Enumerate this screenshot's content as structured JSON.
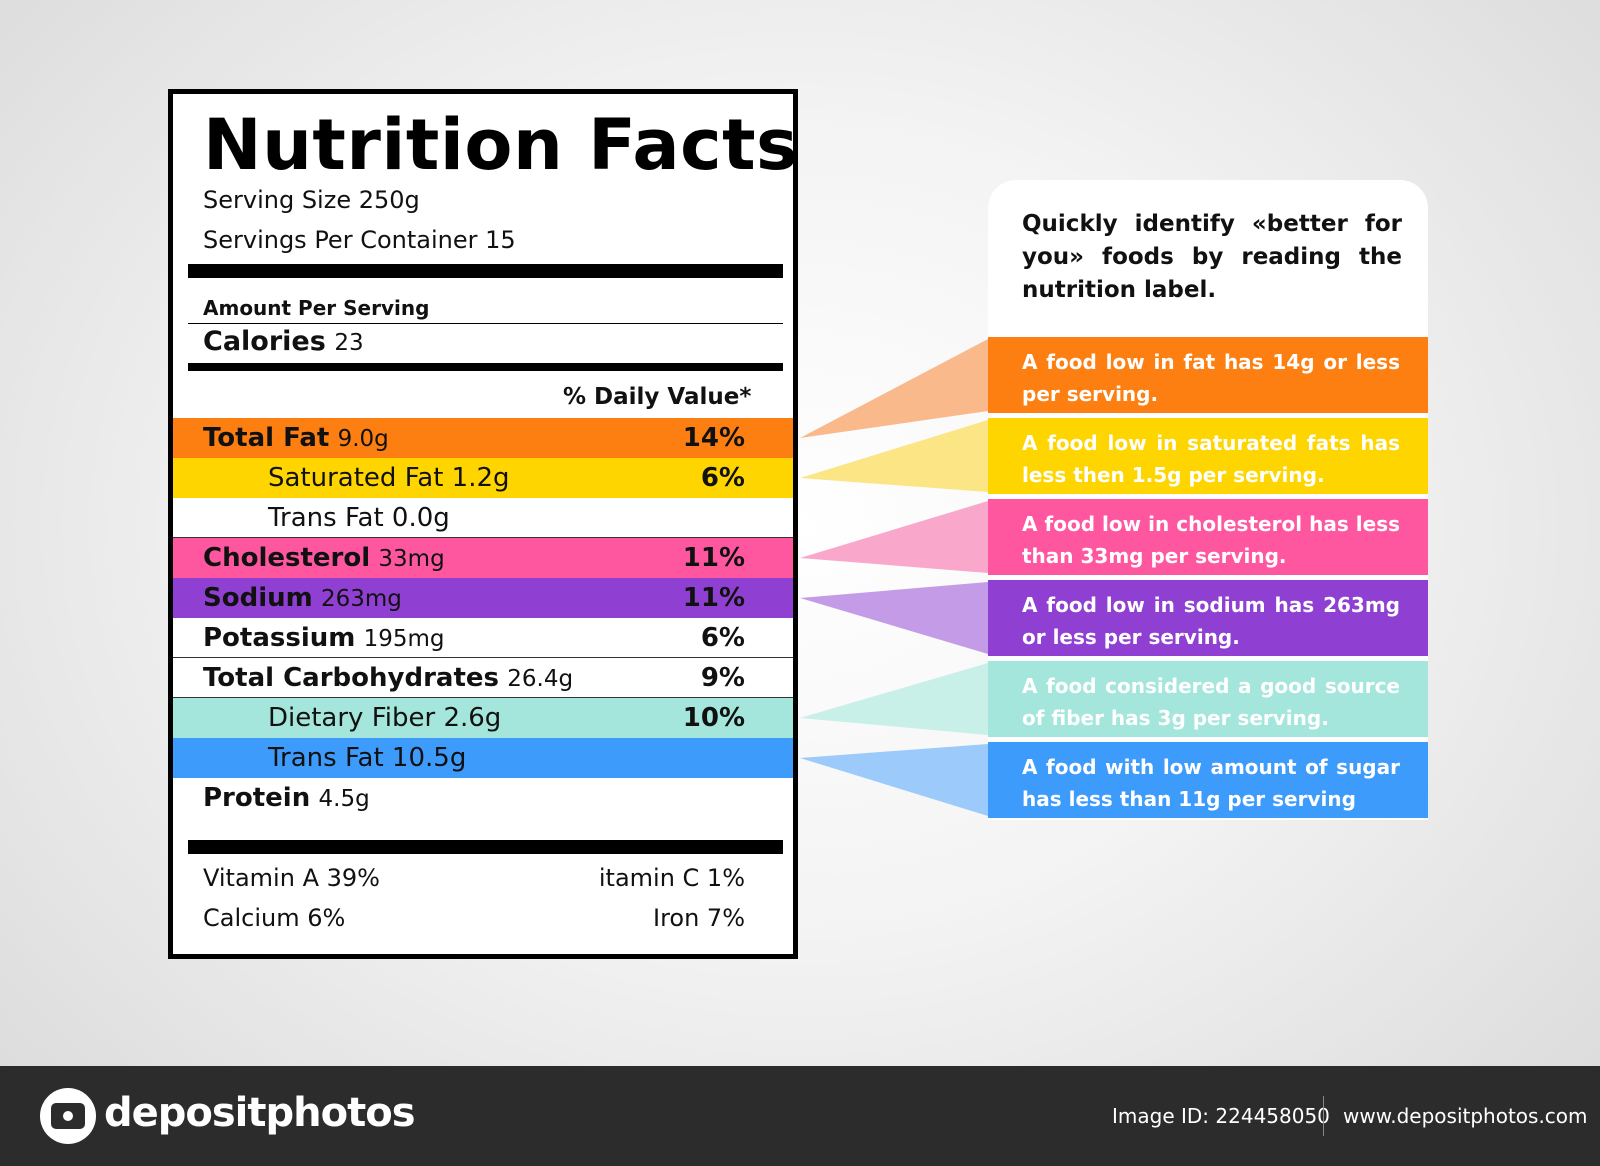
{
  "label": {
    "title": "Nutrition Facts",
    "serving_size": "Serving Size 250g",
    "servings_per_container": "Servings Per Container 15",
    "amount_per_serving": "Amount Per Serving",
    "calories_label": "Calories",
    "calories_value": "23",
    "daily_value_header": "% Daily Value*",
    "rows": [
      {
        "name": "Total Fat",
        "amount": "9.0g",
        "pct": "14%",
        "bold": true,
        "indent": false,
        "color": "#fd7f11"
      },
      {
        "name": "Saturated Fat 1.2g",
        "amount": "",
        "pct": "6%",
        "bold": false,
        "indent": true,
        "color": "#ffd500"
      },
      {
        "name": "Trans Fat 0.0g",
        "amount": "",
        "pct": "",
        "bold": false,
        "indent": true,
        "color": "#ffffff"
      },
      {
        "name": "Cholesterol",
        "amount": "33mg",
        "pct": "11%",
        "bold": true,
        "indent": false,
        "color": "#ff56a0"
      },
      {
        "name": "Sodium",
        "amount": "263mg",
        "pct": "11%",
        "bold": true,
        "indent": false,
        "color": "#8f3fd2"
      },
      {
        "name": "Potassium",
        "amount": "195mg",
        "pct": "6%",
        "bold": true,
        "indent": false,
        "color": "#ffffff"
      },
      {
        "name": "Total Carbohydrates",
        "amount": "26.4g",
        "pct": "9%",
        "bold": true,
        "indent": false,
        "color": "#ffffff"
      },
      {
        "name": "Dietary Fiber 2.6g",
        "amount": "",
        "pct": "10%",
        "bold": false,
        "indent": true,
        "color": "#a4e6dc"
      },
      {
        "name": "Trans Fat 10.5g",
        "amount": "",
        "pct": "",
        "bold": false,
        "indent": true,
        "color": "#3d9bfb"
      },
      {
        "name": "Protein",
        "amount": "4.5g",
        "pct": "",
        "bold": true,
        "indent": false,
        "color": "#ffffff"
      }
    ],
    "vitamin_a": "Vitamin A 39%",
    "vitamin_c": "itamin C 1%",
    "calcium": "Calcium 6%",
    "iron": "Iron 7%"
  },
  "callout": {
    "heading": "Quickly identify «better for you» foods by reading the nutrition label.",
    "boxes": [
      {
        "text": "A food low in fat has 14g or less per serving.",
        "color": "#fd7f11",
        "fade": "#f9b98a"
      },
      {
        "text": "A food low in saturated fats has less then 1.5g per serving.",
        "color": "#ffd500",
        "fade": "#fbe584"
      },
      {
        "text": "A food low in cholesterol has less than 33mg per serving.",
        "color": "#ff56a0",
        "fade": "#f9a8cc"
      },
      {
        "text": "A food low in sodium has 263mg or less per serving.",
        "color": "#8f3fd2",
        "fade": "#c49be6"
      },
      {
        "text": "A food considered a good source of fiber has 3g per serving.",
        "color": "#a4e6dc",
        "fade": "#c8efe8"
      },
      {
        "text": "A food with low amount of sugar has less than 11g per serving",
        "color": "#3d9bfb",
        "fade": "#9ccafb"
      }
    ]
  },
  "footer": {
    "logo": "depositphotos",
    "image_id": "Image ID: 224458050",
    "url": "www.depositphotos.com"
  }
}
